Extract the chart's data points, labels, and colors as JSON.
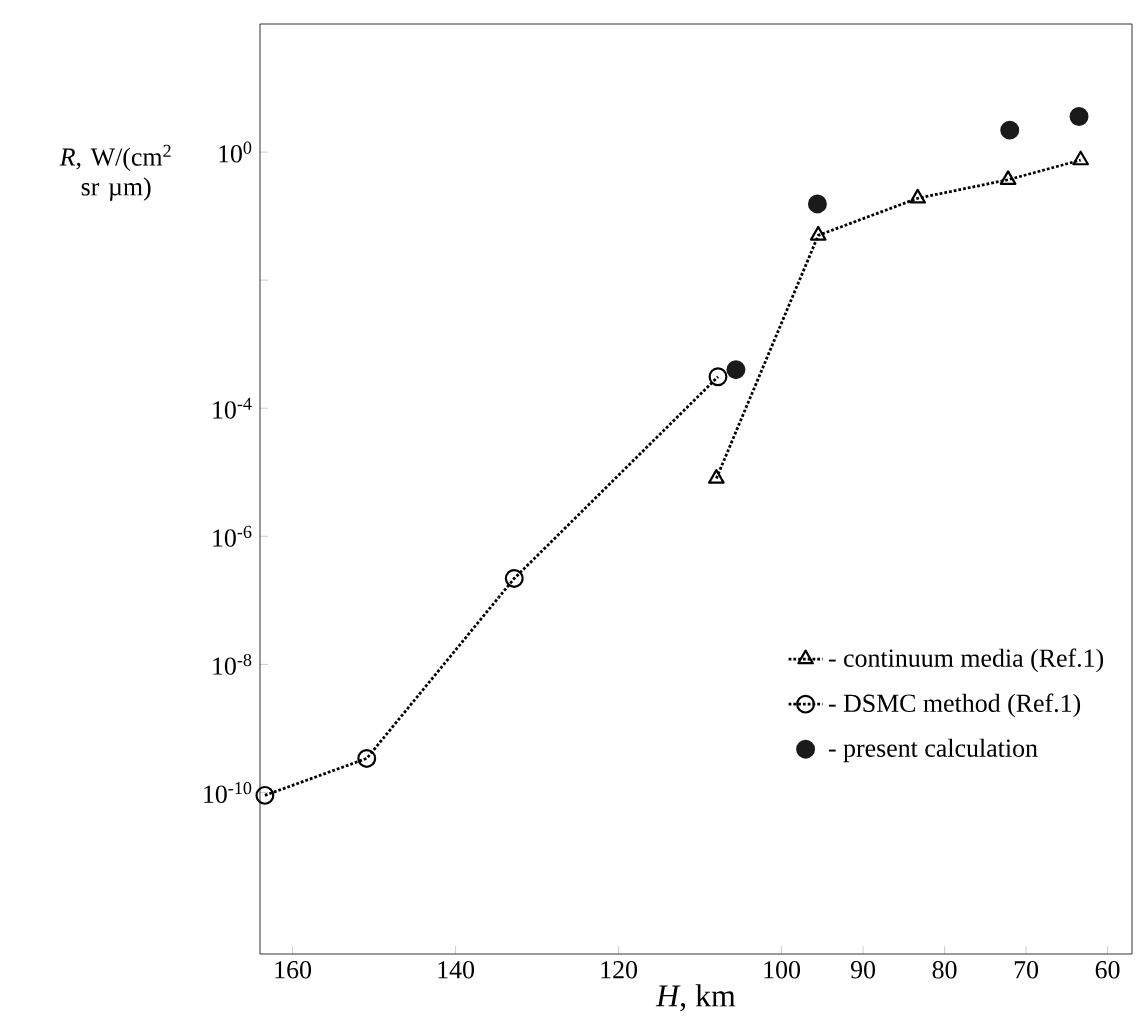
{
  "chart_data": {
    "type": "line",
    "xlabel": "*H*, km",
    "ylabel": "*R*, W/(cm$^{2}$ sr µm)",
    "log": "y",
    "xlim": [
      164,
      57
    ],
    "ylim": [
      3e-13,
      100
    ],
    "xticks": [
      160,
      140,
      120,
      100,
      90,
      80,
      70,
      60
    ],
    "yticks": [
      {
        "value": 1e-10,
        "label": "10$^{-10}$"
      },
      {
        "value": 1e-08,
        "label": "10$^{-8}$"
      },
      {
        "value": 1e-06,
        "label": "10$^{-6}$"
      },
      {
        "value": 0.0001,
        "label": "10$^{-4}$"
      },
      {
        "value": 0.01,
        "label": null
      },
      {
        "value": 1,
        "label": "10$^{0}$"
      }
    ],
    "legend": "bottom right",
    "grid": false,
    "series": [
      {
        "name": "- continuum media (Ref.1)",
        "marker": "triangle",
        "line_style": "dotted",
        "color": "#000000",
        "x": [
          108,
          95.5,
          83.3,
          72.2,
          63.3
        ],
        "values": [
          8e-06,
          0.05,
          0.19,
          0.37,
          0.75
        ]
      },
      {
        "name": "- DSMC method (Ref.1)",
        "marker": "circle",
        "line_style": "dotted",
        "color": "#000000",
        "x": [
          163.4,
          150.9,
          132.8,
          107.8
        ],
        "values": [
          9e-11,
          3.4e-10,
          2.2e-07,
          0.00031
        ]
      },
      {
        "name": "- present calculation",
        "type": "scatter",
        "marker": "circle",
        "color": "#1a1a1a",
        "x": [
          105.6,
          95.6,
          72,
          63.5
        ],
        "values": [
          0.0004,
          0.155,
          2.2,
          3.6
        ]
      }
    ]
  }
}
